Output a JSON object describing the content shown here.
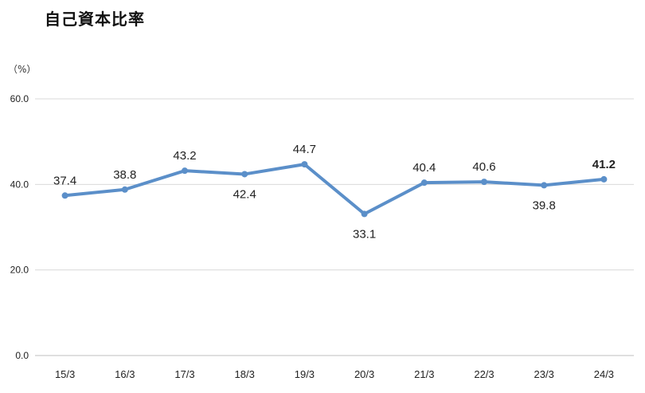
{
  "chart_data": {
    "type": "line",
    "title": "自己資本比率",
    "ylabel": "（%）",
    "xlabel": "",
    "categories": [
      "15/3",
      "16/3",
      "17/3",
      "18/3",
      "19/3",
      "20/3",
      "21/3",
      "22/3",
      "23/3",
      "24/3"
    ],
    "series": [
      {
        "values": [
          37.4,
          38.8,
          43.2,
          42.4,
          44.7,
          33.1,
          40.4,
          40.6,
          39.8,
          41.2
        ],
        "labels": [
          "37.4",
          "38.8",
          "43.2",
          "42.4",
          "44.7",
          "33.1",
          "40.4",
          "40.6",
          "39.8",
          "41.2"
        ]
      }
    ],
    "ylim": [
      0,
      60
    ],
    "yticks": [
      "0.0",
      "20.0",
      "40.0",
      "60.0"
    ],
    "grid": true,
    "line_color": "#5B8FC9",
    "emphasis_last_label": true
  }
}
